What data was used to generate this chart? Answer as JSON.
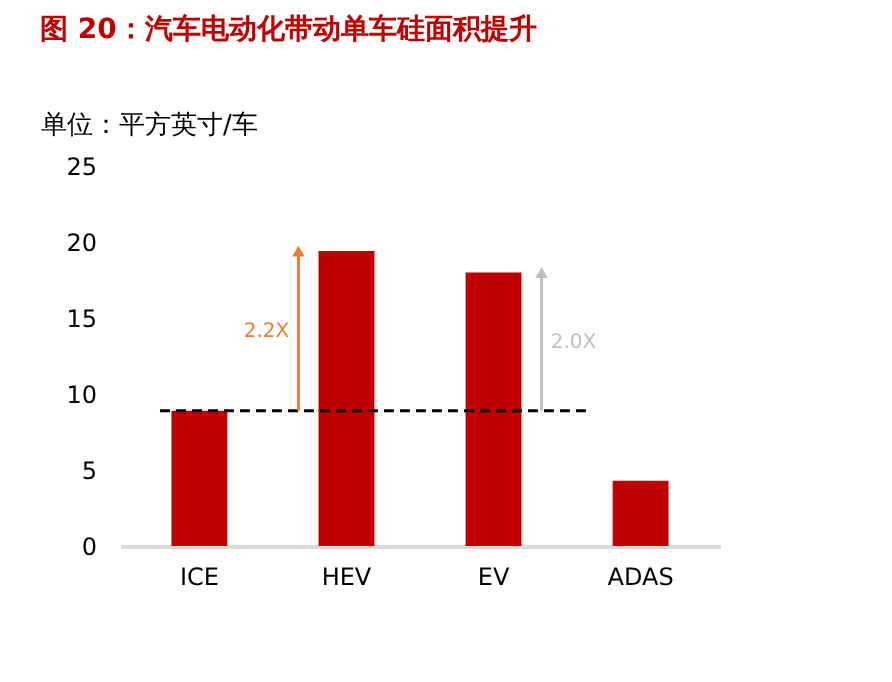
{
  "chart_data": {
    "type": "bar",
    "title": "图 20：汽车电动化带动单车硅面积提升",
    "ylabel": "单位：平方英寸/车",
    "categories": [
      "ICE",
      "HEV",
      "EV",
      "ADAS"
    ],
    "values": [
      8.9,
      19.4,
      18.0,
      4.3
    ],
    "color": "#c00000",
    "ylim": [
      0,
      25
    ],
    "yticks": [
      0,
      5,
      10,
      15,
      20,
      25
    ],
    "grid": false,
    "ref_lines": [
      {
        "axis": "y",
        "value": 8.9,
        "color": "#000000",
        "line_style": "dashed"
      }
    ],
    "annotations": [
      "2.2X",
      "2.0X"
    ]
  }
}
